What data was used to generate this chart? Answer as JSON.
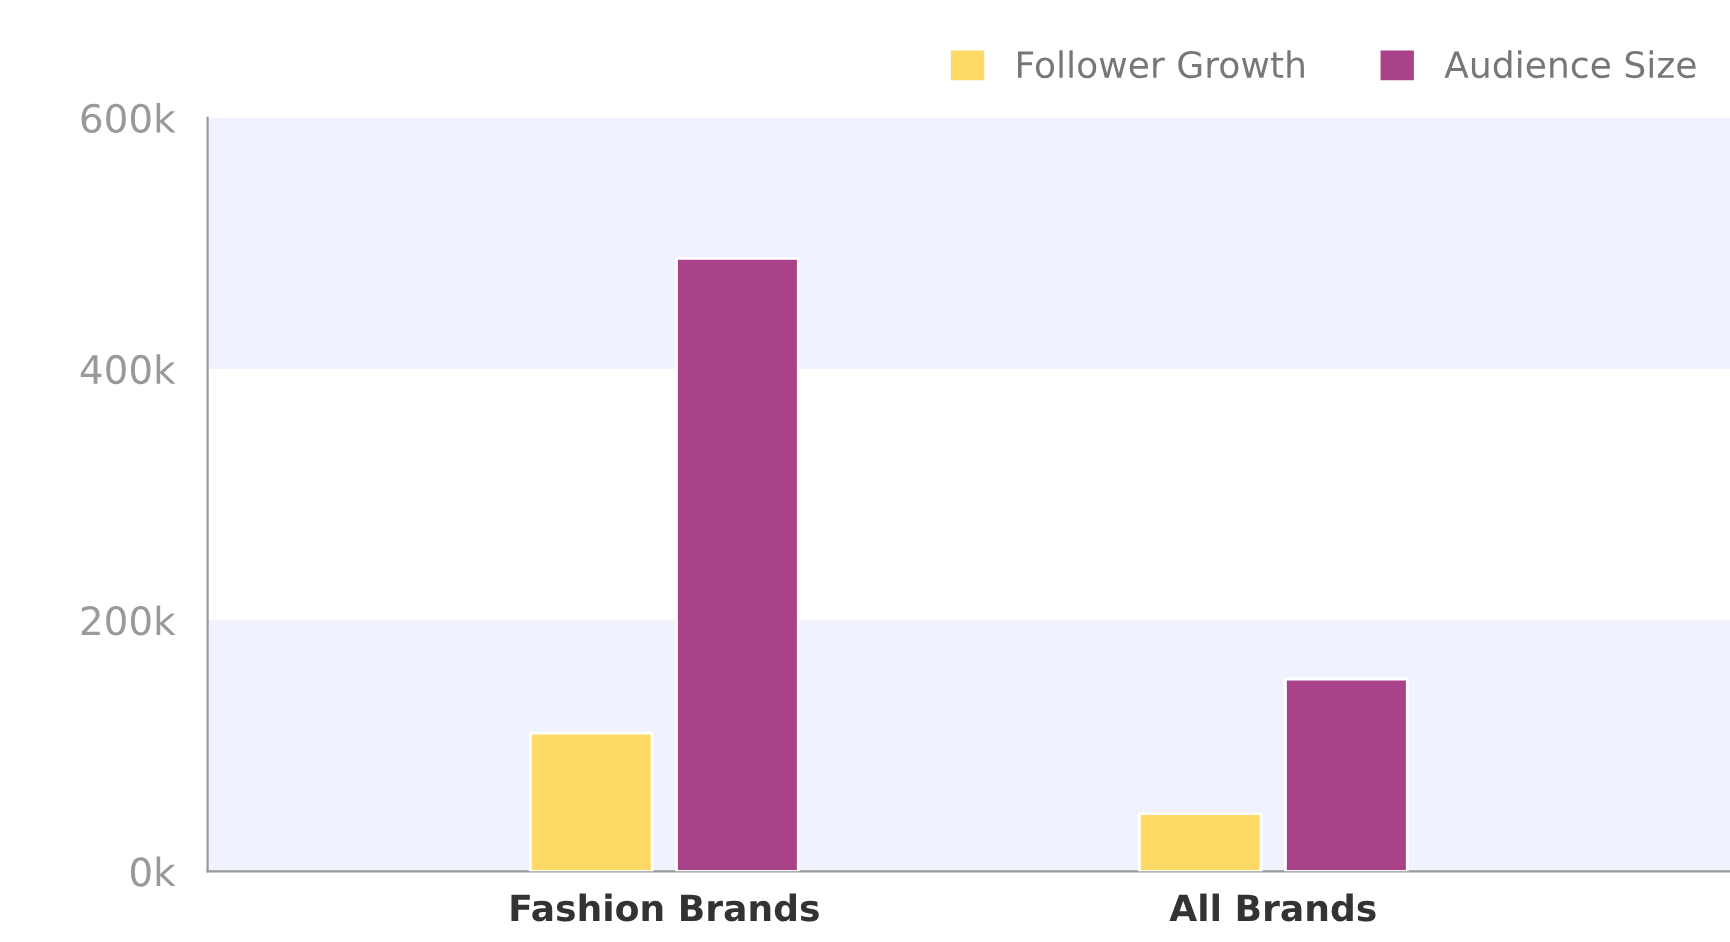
{
  "chart_data": {
    "type": "bar",
    "categories": [
      "Fashion Brands",
      "All Brands"
    ],
    "series": [
      {
        "name": "Follower Growth",
        "color": "#ffd966",
        "values": [
          110000,
          46000
        ]
      },
      {
        "name": "Audience Size",
        "color": "#aa4289",
        "values": [
          488000,
          153000
        ]
      }
    ],
    "ylim": [
      0,
      600000
    ],
    "yticks": [
      {
        "value": 0,
        "label": "0k"
      },
      {
        "value": 200000,
        "label": "200k"
      },
      {
        "value": 400000,
        "label": "400k"
      },
      {
        "value": 600000,
        "label": "600k"
      }
    ],
    "bands": [
      {
        "axis": "y",
        "from": 0,
        "to": 200000,
        "color": "#f0f3ff"
      },
      {
        "axis": "y",
        "from": 400000,
        "to": 600000,
        "color": "#f0f3ff"
      }
    ],
    "legend": "top right"
  }
}
